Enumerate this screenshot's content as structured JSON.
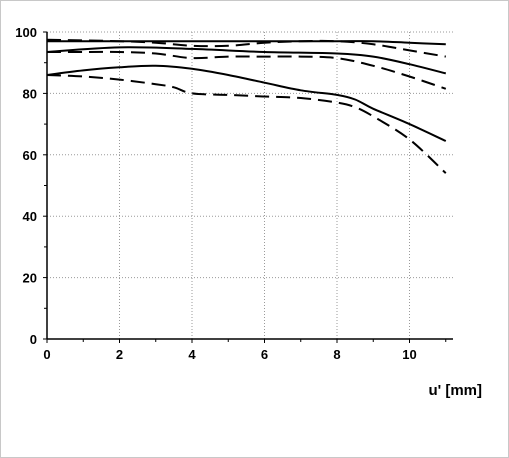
{
  "chart_data": {
    "type": "line",
    "title": "",
    "xlabel": "u' [mm]",
    "ylabel": "",
    "xlim": [
      0,
      11.2
    ],
    "ylim": [
      0,
      100
    ],
    "x_ticks": [
      0,
      2,
      4,
      6,
      8,
      10
    ],
    "y_ticks": [
      0,
      20,
      40,
      60,
      80,
      100
    ],
    "grid": true,
    "legend": "none",
    "series": [
      {
        "style": "solid",
        "color": "#000000",
        "x": [
          0,
          2,
          4,
          6,
          8,
          9,
          10,
          11
        ],
        "y": [
          97,
          97,
          97,
          97,
          97,
          97,
          96.5,
          96
        ]
      },
      {
        "style": "dashed",
        "color": "#000000",
        "x": [
          0,
          2,
          3,
          4,
          5,
          6,
          7,
          8,
          9,
          10,
          11
        ],
        "y": [
          97.5,
          97,
          96.5,
          95.5,
          95.5,
          96.5,
          97,
          97,
          96,
          94,
          92
        ]
      },
      {
        "style": "solid",
        "color": "#000000",
        "x": [
          0,
          2,
          4,
          6,
          8,
          9,
          10,
          11
        ],
        "y": [
          93.5,
          95,
          94.5,
          93.5,
          93,
          92,
          89.5,
          86.5
        ]
      },
      {
        "style": "dashed",
        "color": "#000000",
        "x": [
          0,
          1,
          2,
          3,
          4,
          5,
          6,
          7,
          8,
          9,
          10,
          11
        ],
        "y": [
          93.5,
          93.5,
          93.5,
          93,
          91.5,
          92,
          92,
          92,
          91.5,
          89,
          85.5,
          81.5
        ]
      },
      {
        "style": "solid",
        "color": "#000000",
        "x": [
          0,
          1,
          2,
          3,
          4,
          5,
          6,
          7,
          8,
          8.5,
          9,
          10,
          11
        ],
        "y": [
          86,
          87.5,
          88.5,
          89,
          88,
          86,
          83.5,
          81,
          79.5,
          78,
          75,
          70,
          64.5
        ]
      },
      {
        "style": "dashed",
        "color": "#000000",
        "x": [
          0,
          1,
          2,
          3,
          3.5,
          4,
          5,
          6,
          7,
          8,
          8.5,
          9,
          10,
          11
        ],
        "y": [
          86,
          85.5,
          84.5,
          83,
          82,
          80,
          79.5,
          79,
          78.5,
          77,
          75.5,
          72.5,
          65,
          54
        ]
      }
    ]
  }
}
